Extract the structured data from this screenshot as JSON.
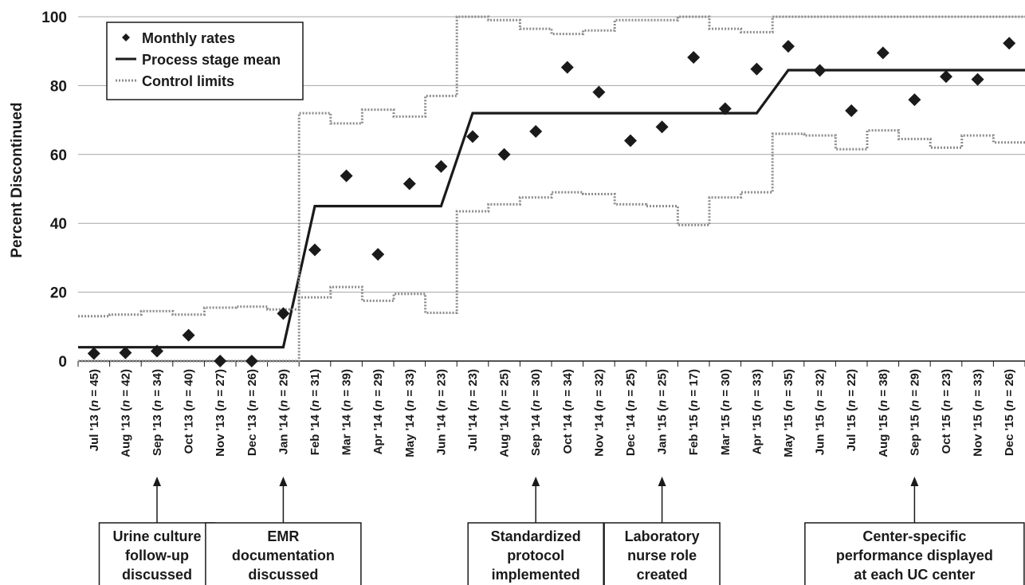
{
  "chart_data": {
    "type": "scatter",
    "ylabel": "Percent Discontinued",
    "xlabel": "",
    "ylim": [
      0,
      100
    ],
    "yticks": [
      0,
      20,
      40,
      60,
      80,
      100
    ],
    "grid": "horizontal",
    "legend": {
      "placement": "top-left",
      "entries": [
        "Monthly rates",
        "Process stage mean",
        "Control limits"
      ]
    },
    "categories": [
      {
        "month": "Jul '13",
        "n": "45"
      },
      {
        "month": "Aug '13",
        "n": "42"
      },
      {
        "month": "Sep '13",
        "n": "34"
      },
      {
        "month": "Oct '13",
        "n": "40"
      },
      {
        "month": "Nov '13",
        "n": "27"
      },
      {
        "month": "Dec '13",
        "n": "26"
      },
      {
        "month": "Jan '14",
        "n": "29"
      },
      {
        "month": "Feb '14",
        "n": "31"
      },
      {
        "month": "Mar '14",
        "n": "39"
      },
      {
        "month": "Apr '14",
        "n": "29"
      },
      {
        "month": "May '14",
        "n": "33"
      },
      {
        "month": "Jun '14",
        "n": "23"
      },
      {
        "month": "Jul '14",
        "n": "23"
      },
      {
        "month": "Aug '14",
        "n": "25"
      },
      {
        "month": "Sep '14",
        "n": "30"
      },
      {
        "month": "Oct '14",
        "n": "34"
      },
      {
        "month": "Nov '14",
        "n": "32"
      },
      {
        "month": "Dec '14",
        "n": "25"
      },
      {
        "month": "Jan '15",
        "n": "25"
      },
      {
        "month": "Feb '15",
        "n": "17"
      },
      {
        "month": "Mar '15",
        "n": "30"
      },
      {
        "month": "Apr '15",
        "n": "33"
      },
      {
        "month": "May '15",
        "n": "35"
      },
      {
        "month": "Jun '15",
        "n": "32"
      },
      {
        "month": "Jul '15",
        "n": "22"
      },
      {
        "month": "Aug '15",
        "n": "38"
      },
      {
        "month": "Sep '15",
        "n": "29"
      },
      {
        "month": "Oct '15",
        "n": "23"
      },
      {
        "month": "Nov '15",
        "n": "33"
      },
      {
        "month": "Dec '15",
        "n": "26"
      }
    ],
    "series": [
      {
        "name": "Monthly rates",
        "type": "scatter",
        "values": [
          2.2,
          2.4,
          2.9,
          7.5,
          0,
          0,
          13.8,
          32.3,
          53.8,
          31.0,
          51.5,
          56.5,
          65.2,
          60.0,
          66.7,
          85.3,
          78.1,
          64.0,
          68.0,
          88.2,
          73.3,
          84.8,
          91.4,
          84.4,
          72.7,
          89.5,
          75.9,
          82.6,
          81.8,
          92.3
        ]
      },
      {
        "name": "Process stage mean",
        "type": "step",
        "values": [
          4,
          4,
          4,
          4,
          4,
          4,
          4,
          45,
          45,
          45,
          45,
          45,
          72,
          72,
          72,
          72,
          72,
          72,
          72,
          72,
          72,
          72,
          84.5,
          84.5,
          84.5,
          84.5,
          84.5,
          84.5,
          84.5,
          84.5
        ]
      },
      {
        "name": "Control limits (upper)",
        "type": "step",
        "values": [
          13,
          13.5,
          14.5,
          13.5,
          15.5,
          15.8,
          15,
          72,
          69,
          73,
          71,
          77,
          100,
          99,
          96.5,
          95,
          96,
          99,
          99,
          100,
          96.5,
          95.5,
          100,
          100,
          100,
          100,
          100,
          100,
          100,
          100
        ]
      },
      {
        "name": "Control limits (lower)",
        "type": "step",
        "values": [
          0,
          0,
          0,
          0,
          0,
          0,
          0,
          18.5,
          21.5,
          17.5,
          19.5,
          14,
          43.5,
          45.5,
          47.5,
          49,
          48.5,
          45.5,
          45,
          39.5,
          47.5,
          49,
          66,
          65.5,
          61.5,
          67,
          64.5,
          62,
          65.5,
          63.5
        ]
      }
    ],
    "annotations": [
      {
        "index": 2,
        "lines": [
          "Urine culture",
          "follow-up",
          "discussed"
        ]
      },
      {
        "index": 6,
        "lines": [
          "EMR",
          "documentation",
          "discussed"
        ]
      },
      {
        "index": 14,
        "lines": [
          "Standardized",
          "protocol",
          "implemented"
        ]
      },
      {
        "index": 18,
        "lines": [
          "Laboratory",
          "nurse role",
          "created"
        ]
      },
      {
        "index": 26,
        "lines": [
          "Center-specific",
          "performance displayed",
          "at each UC center"
        ]
      }
    ]
  },
  "colors": {
    "ink": "#1a1a1a",
    "grid": "#a6a6a6",
    "control_limits": "#8c8c8c",
    "background": "#ffffff"
  }
}
